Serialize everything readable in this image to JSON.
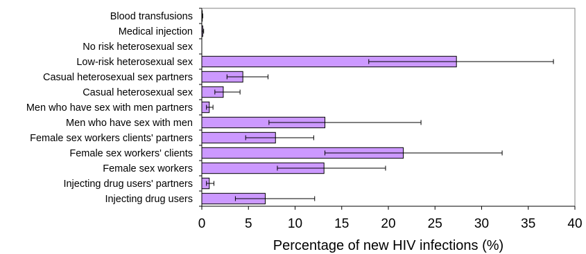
{
  "chart_data": {
    "type": "bar",
    "orientation": "horizontal",
    "categories": [
      "Blood transfusions",
      "Medical injection",
      "No risk heterosexual sex",
      "Low-risk heterosexual sex",
      "Casual heterosexual sex partners",
      "Casual heterosexual sex",
      "Men who have sex with men partners",
      "Men who have sex with men",
      "Female sex workers clients' partners",
      "Female sex workers' clients",
      "Female sex workers",
      "Injecting drug users' partners",
      "Injecting drug users "
    ],
    "values": [
      0.05,
      0.1,
      0.0,
      27.3,
      4.4,
      2.3,
      0.8,
      13.2,
      7.9,
      21.6,
      13.1,
      0.8,
      6.8
    ],
    "error_low": [
      0.0,
      0.0,
      0.0,
      17.9,
      2.7,
      1.4,
      0.5,
      7.2,
      4.7,
      13.2,
      8.1,
      0.5,
      3.6
    ],
    "error_high": [
      0.1,
      0.2,
      0.0,
      37.7,
      7.1,
      4.1,
      1.2,
      23.5,
      12.0,
      32.2,
      19.7,
      1.3,
      12.1
    ],
    "xlabel": "Percentage  of  new HIV infections  (%)",
    "xlim": [
      0,
      40
    ],
    "xticks": [
      "0",
      "5",
      "10",
      "15",
      "20",
      "25",
      "30",
      "35",
      "40"
    ],
    "bar_color": "#cc99ff",
    "grid": false,
    "legend": "none"
  }
}
